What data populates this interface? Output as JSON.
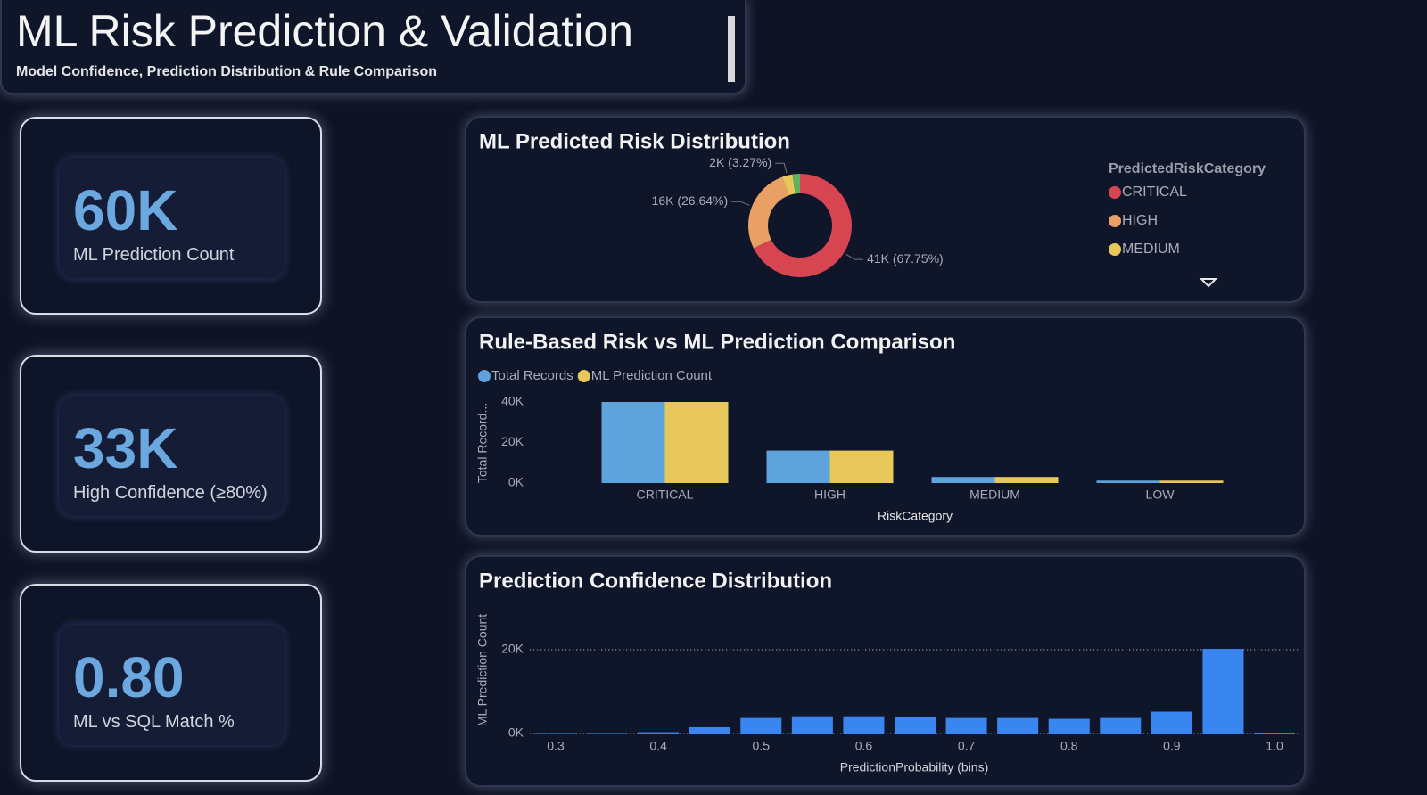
{
  "header": {
    "title": "ML Risk Prediction & Validation",
    "subtitle": "Model Confidence, Prediction Distribution & Rule Comparison"
  },
  "kpis": [
    {
      "value": "60K",
      "label": "ML Prediction Count"
    },
    {
      "value": "33K",
      "label": "High Confidence (≥80%)"
    },
    {
      "value": "0.80",
      "label": "ML vs SQL Match %"
    }
  ],
  "chart_data": [
    {
      "type": "pie",
      "title": "ML Predicted Risk Distribution",
      "legend_title": "PredictedRiskCategory",
      "categories": [
        "CRITICAL",
        "HIGH",
        "MEDIUM",
        null
      ],
      "values": [
        67.75,
        26.64,
        3.27,
        2.34
      ],
      "value_labels": [
        "41K (67.75%)",
        "16K (26.64%)",
        "2K (3.27%)",
        null
      ],
      "colors": [
        "#d64550",
        "#e8a065",
        "#e8c85a",
        "#5fb35f"
      ],
      "legend": "top-right"
    },
    {
      "type": "bar",
      "title": "Rule-Based Risk vs ML Prediction Comparison",
      "categories": [
        "CRITICAL",
        "HIGH",
        "MEDIUM",
        "LOW"
      ],
      "series": [
        {
          "name": "Total Records",
          "color": "#5fa3dc",
          "values": [
            40000,
            16000,
            3000,
            1200
          ]
        },
        {
          "name": "ML Prediction Count",
          "color": "#e8c85a",
          "values": [
            40000,
            16000,
            3000,
            1200
          ]
        }
      ],
      "x_label": "RiskCategory",
      "y_label": "Total Record...",
      "ylim": [
        0,
        40000
      ],
      "yticks": [
        {
          "value": 0,
          "label": "0K"
        },
        {
          "value": 20000,
          "label": "20K"
        },
        {
          "value": 40000,
          "label": "40K"
        }
      ],
      "grid": false,
      "legend": "top-left"
    },
    {
      "type": "bar",
      "title": "Prediction Confidence Distribution",
      "x": [
        0.3,
        0.35,
        0.4,
        0.45,
        0.5,
        0.55,
        0.6,
        0.65,
        0.7,
        0.75,
        0.8,
        0.85,
        0.9,
        0.95,
        1.0
      ],
      "values": [
        100,
        100,
        300,
        1500,
        3700,
        4100,
        4100,
        3900,
        3700,
        3700,
        3500,
        3700,
        5200,
        20200,
        200
      ],
      "color": "#3a86f0",
      "x_label": "PredictionProbability (bins)",
      "y_label": "ML Prediction Count",
      "xlim": [
        0.275,
        1.025
      ],
      "xticks": [
        0.3,
        0.4,
        0.5,
        0.6,
        0.7,
        0.8,
        0.9,
        {
          "value": 1,
          "label": "1.0"
        }
      ],
      "ylim": [
        0,
        25000
      ],
      "yticks": [
        {
          "value": 0,
          "label": "0K"
        },
        {
          "value": 20000,
          "label": "20K"
        }
      ],
      "grid": true
    }
  ]
}
